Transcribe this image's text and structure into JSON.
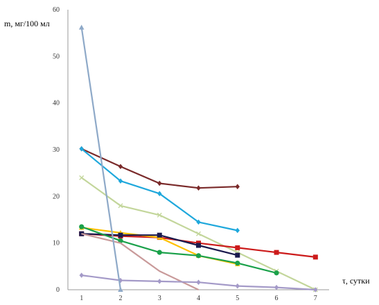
{
  "chart_data": {
    "type": "line",
    "ylabel": "m, мг/100 мл",
    "xlabel": "τ, сутки",
    "x_ticks": [
      "1",
      "2",
      "3",
      "4",
      "5",
      "6",
      "7"
    ],
    "y_ticks": [
      "0",
      "10",
      "20",
      "30",
      "40",
      "50",
      "60"
    ],
    "xlim": [
      0.65,
      7.35
    ],
    "ylim": [
      0,
      60
    ],
    "grid": false,
    "legend": "none",
    "series": [
      {
        "color": "#7a2a2a",
        "marker": "diamond",
        "x": [
          1,
          2,
          3,
          4,
          5
        ],
        "y": [
          30.2,
          26.4,
          22.8,
          21.8,
          22.1
        ]
      },
      {
        "color": "#1fa8dc",
        "marker": "diamond",
        "x": [
          1,
          2,
          3,
          4,
          5
        ],
        "y": [
          30.2,
          23.3,
          20.6,
          14.5,
          12.7
        ]
      },
      {
        "color": "#c3d69b",
        "marker": "cross",
        "x": [
          1,
          2,
          3,
          4,
          5,
          6,
          7
        ],
        "y": [
          24.0,
          18.0,
          16.0,
          12.0,
          8.0,
          4.0,
          0.0
        ]
      },
      {
        "color": "#cc1b1b",
        "marker": "square",
        "x": [
          1,
          2,
          3,
          4,
          5,
          6,
          7
        ],
        "y": [
          12.0,
          11.5,
          11.2,
          10.0,
          9.0,
          8.0,
          7.0
        ]
      },
      {
        "color": "#ffc000",
        "marker": "triangle",
        "x": [
          1,
          2,
          3,
          4,
          5
        ],
        "y": [
          13.3,
          12.2,
          11.2,
          7.3,
          5.5
        ]
      },
      {
        "color": "#1a1a4e",
        "marker": "square",
        "x": [
          1,
          2,
          3,
          4,
          5
        ],
        "y": [
          12.0,
          11.7,
          11.7,
          9.5,
          7.4
        ]
      },
      {
        "color": "#1aa14a",
        "marker": "circle",
        "x": [
          1,
          2,
          3,
          4,
          5,
          6
        ],
        "y": [
          13.5,
          10.5,
          8.0,
          7.3,
          5.7,
          3.6
        ]
      },
      {
        "color": "#c99a9a",
        "marker": "none",
        "x": [
          1,
          2,
          3,
          4
        ],
        "y": [
          12.0,
          10.0,
          4.0,
          0.0
        ]
      },
      {
        "color": "#a49ac8",
        "marker": "diamond",
        "x": [
          1,
          2,
          3,
          4,
          5,
          6,
          7
        ],
        "y": [
          3.1,
          2.0,
          1.8,
          1.6,
          0.8,
          0.5,
          0.0
        ]
      },
      {
        "color": "#8ea9c8",
        "marker": "triangle",
        "x": [
          1,
          2
        ],
        "y": [
          56.2,
          0.0
        ]
      }
    ]
  }
}
